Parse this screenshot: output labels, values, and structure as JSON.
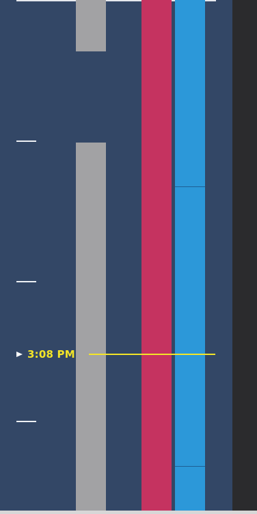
{
  "timeline": {
    "current_time": {
      "label": "3:08 PM",
      "arrow_icon": "play-arrow-icon",
      "color": "#f3e528"
    },
    "colors": {
      "panel_background": "#334766",
      "gray_calendar": "#a2a2a4",
      "red_calendar": "#c53360",
      "blue_calendar": "#2c98d9"
    }
  }
}
